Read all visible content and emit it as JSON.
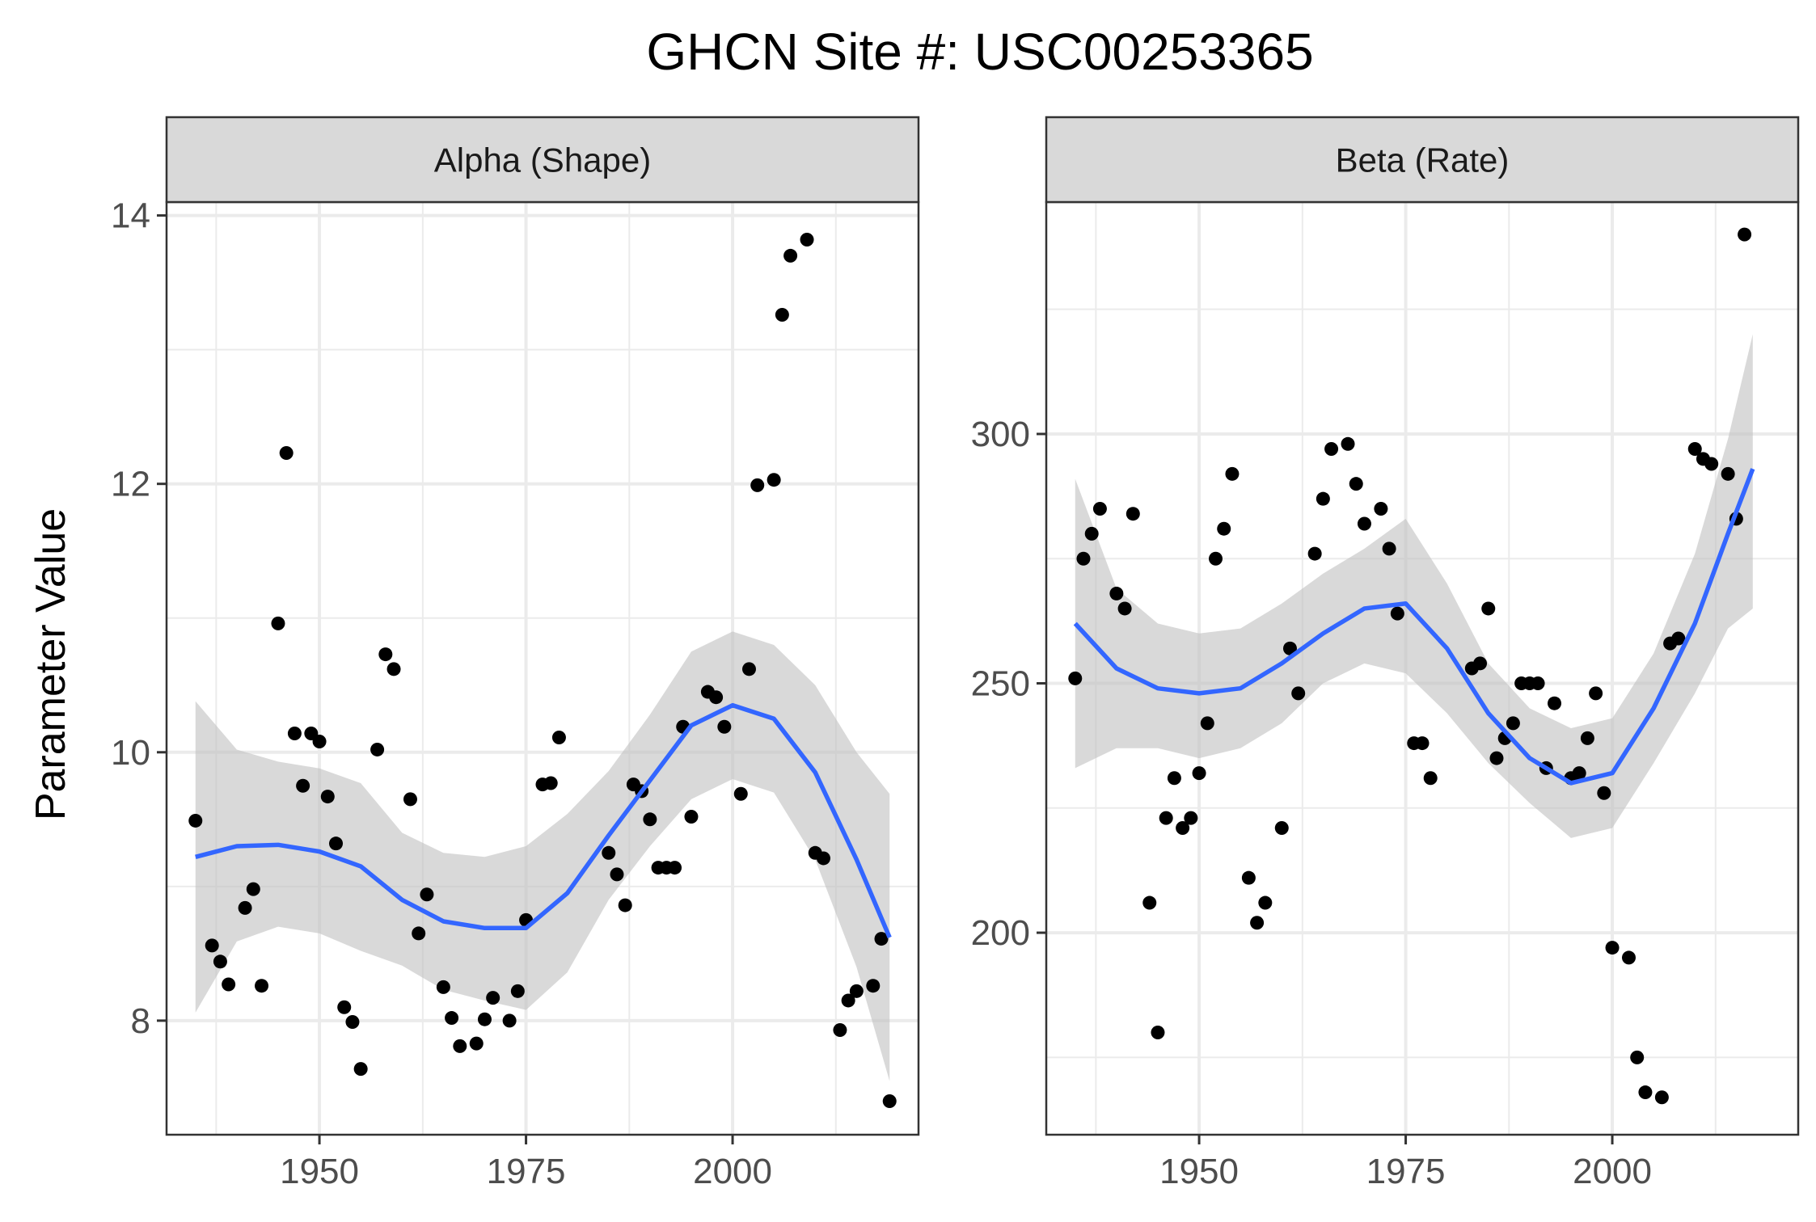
{
  "title": "GHCN Site #: USC00253365",
  "y_axis_label": "Parameter Value",
  "colors": {
    "point": "#000000",
    "smooth": "#3366FF",
    "ribbon": "#bfbfbf",
    "strip": "#d9d9d9",
    "grid": "#ebebeb"
  },
  "chart_data": [
    {
      "type": "scatter",
      "panel": "Alpha (Shape)",
      "xlabel": "",
      "ylabel": "Parameter Value",
      "xlim": [
        1931.5,
        2022.5
      ],
      "ylim": [
        7.15,
        14.1
      ],
      "x_ticks": [
        1950,
        1975,
        2000
      ],
      "y_ticks": [
        8,
        10,
        12,
        14
      ],
      "grid": true,
      "points": [
        [
          1935,
          9.49
        ],
        [
          1937,
          8.56
        ],
        [
          1938,
          8.44
        ],
        [
          1939,
          8.27
        ],
        [
          1941,
          8.84
        ],
        [
          1942,
          8.98
        ],
        [
          1943,
          8.26
        ],
        [
          1945,
          10.96
        ],
        [
          1946,
          12.23
        ],
        [
          1947,
          10.14
        ],
        [
          1948,
          9.75
        ],
        [
          1949,
          10.14
        ],
        [
          1950,
          10.08
        ],
        [
          1951,
          9.67
        ],
        [
          1952,
          9.32
        ],
        [
          1953,
          8.1
        ],
        [
          1954,
          7.99
        ],
        [
          1955,
          7.64
        ],
        [
          1957,
          10.02
        ],
        [
          1958,
          10.73
        ],
        [
          1959,
          10.62
        ],
        [
          1961,
          9.65
        ],
        [
          1962,
          8.65
        ],
        [
          1963,
          8.94
        ],
        [
          1965,
          8.25
        ],
        [
          1966,
          8.02
        ],
        [
          1967,
          7.81
        ],
        [
          1969,
          7.83
        ],
        [
          1970,
          8.01
        ],
        [
          1971,
          8.17
        ],
        [
          1973,
          8.0
        ],
        [
          1974,
          8.22
        ],
        [
          1975,
          8.75
        ],
        [
          1977,
          9.76
        ],
        [
          1978,
          9.77
        ],
        [
          1979,
          10.11
        ],
        [
          1985,
          9.25
        ],
        [
          1986,
          9.09
        ],
        [
          1987,
          8.86
        ],
        [
          1988,
          9.76
        ],
        [
          1989,
          9.71
        ],
        [
          1990,
          9.5
        ],
        [
          1991,
          9.14
        ],
        [
          1992,
          9.14
        ],
        [
          1993,
          9.14
        ],
        [
          1994,
          10.19
        ],
        [
          1995,
          9.52
        ],
        [
          1997,
          10.45
        ],
        [
          1998,
          10.41
        ],
        [
          1999,
          10.19
        ],
        [
          2001,
          9.69
        ],
        [
          2002,
          10.62
        ],
        [
          2003,
          11.99
        ],
        [
          2005,
          12.03
        ],
        [
          2006,
          13.26
        ],
        [
          2007,
          13.7
        ],
        [
          2009,
          13.82
        ],
        [
          2010,
          9.25
        ],
        [
          2011,
          9.21
        ],
        [
          2013,
          7.93
        ],
        [
          2014,
          8.15
        ],
        [
          2015,
          8.22
        ],
        [
          2017,
          8.26
        ],
        [
          2018,
          8.61
        ],
        [
          2019,
          7.4
        ]
      ],
      "smooth": [
        [
          1935,
          9.22,
          8.06,
          10.38
        ],
        [
          1940,
          9.3,
          8.59,
          10.02
        ],
        [
          1945,
          9.31,
          8.7,
          9.93
        ],
        [
          1950,
          9.26,
          8.65,
          9.88
        ],
        [
          1955,
          9.15,
          8.52,
          9.77
        ],
        [
          1960,
          8.9,
          8.41,
          9.4
        ],
        [
          1965,
          8.74,
          8.23,
          9.25
        ],
        [
          1970,
          8.69,
          8.15,
          9.22
        ],
        [
          1975,
          8.69,
          8.08,
          9.3
        ],
        [
          1980,
          8.95,
          8.36,
          9.54
        ],
        [
          1985,
          9.38,
          8.9,
          9.86
        ],
        [
          1990,
          9.79,
          9.3,
          10.28
        ],
        [
          1995,
          10.2,
          9.65,
          10.75
        ],
        [
          2000,
          10.35,
          9.8,
          10.9
        ],
        [
          2005,
          10.25,
          9.7,
          10.8
        ],
        [
          2010,
          9.85,
          9.2,
          10.5
        ],
        [
          2015,
          9.2,
          8.4,
          10.0
        ],
        [
          2019,
          8.62,
          7.55,
          9.69
        ]
      ]
    },
    {
      "type": "scatter",
      "panel": "Beta (Rate)",
      "xlabel": "",
      "ylabel": "Parameter Value",
      "xlim": [
        1931.5,
        2022.5
      ],
      "ylim": [
        159.5,
        346.5
      ],
      "x_ticks": [
        1950,
        1975,
        2000
      ],
      "y_ticks": [
        200,
        250,
        300
      ],
      "grid": true,
      "points": [
        [
          1935,
          251
        ],
        [
          1936,
          275
        ],
        [
          1937,
          280
        ],
        [
          1938,
          285
        ],
        [
          1940,
          268
        ],
        [
          1941,
          265
        ],
        [
          1942,
          284
        ],
        [
          1944,
          206
        ],
        [
          1945,
          180
        ],
        [
          1946,
          223
        ],
        [
          1947,
          231
        ],
        [
          1948,
          221
        ],
        [
          1949,
          223
        ],
        [
          1950,
          232
        ],
        [
          1951,
          242
        ],
        [
          1952,
          275
        ],
        [
          1953,
          281
        ],
        [
          1954,
          292
        ],
        [
          1956,
          211
        ],
        [
          1957,
          202
        ],
        [
          1958,
          206
        ],
        [
          1960,
          221
        ],
        [
          1961,
          257
        ],
        [
          1962,
          248
        ],
        [
          1964,
          276
        ],
        [
          1965,
          287
        ],
        [
          1966,
          297
        ],
        [
          1968,
          298
        ],
        [
          1969,
          290
        ],
        [
          1970,
          282
        ],
        [
          1972,
          285
        ],
        [
          1973,
          277
        ],
        [
          1974,
          264
        ],
        [
          1976,
          238
        ],
        [
          1977,
          238
        ],
        [
          1978,
          231
        ],
        [
          1983,
          253
        ],
        [
          1984,
          254
        ],
        [
          1985,
          265
        ],
        [
          1986,
          235
        ],
        [
          1987,
          239
        ],
        [
          1988,
          242
        ],
        [
          1989,
          250
        ],
        [
          1990,
          250
        ],
        [
          1991,
          250
        ],
        [
          1992,
          233
        ],
        [
          1993,
          246
        ],
        [
          1995,
          231
        ],
        [
          1996,
          232
        ],
        [
          1997,
          239
        ],
        [
          1998,
          248
        ],
        [
          1999,
          228
        ],
        [
          2000,
          197
        ],
        [
          2002,
          195
        ],
        [
          2003,
          175
        ],
        [
          2004,
          168
        ],
        [
          2006,
          167
        ],
        [
          2007,
          258
        ],
        [
          2008,
          259
        ],
        [
          2010,
          297
        ],
        [
          2011,
          295
        ],
        [
          2012,
          294
        ],
        [
          2014,
          292
        ],
        [
          2015,
          283
        ],
        [
          2016,
          340
        ]
      ],
      "smooth": [
        [
          1935,
          262,
          233,
          291
        ],
        [
          1940,
          253,
          237,
          269
        ],
        [
          1945,
          249,
          237,
          262
        ],
        [
          1950,
          248,
          235,
          260
        ],
        [
          1955,
          249,
          237,
          261
        ],
        [
          1960,
          254,
          242,
          266
        ],
        [
          1965,
          260,
          250,
          272
        ],
        [
          1970,
          265,
          254,
          277
        ],
        [
          1975,
          266,
          252,
          283
        ],
        [
          1980,
          257,
          244,
          270
        ],
        [
          1985,
          244,
          234,
          254
        ],
        [
          1990,
          235,
          226,
          245
        ],
        [
          1995,
          230,
          219,
          241
        ],
        [
          2000,
          232,
          221,
          243
        ],
        [
          2005,
          245,
          234,
          256
        ],
        [
          2010,
          262,
          248,
          276
        ],
        [
          2014,
          280,
          261,
          299
        ],
        [
          2017,
          293,
          265,
          320
        ]
      ]
    }
  ]
}
